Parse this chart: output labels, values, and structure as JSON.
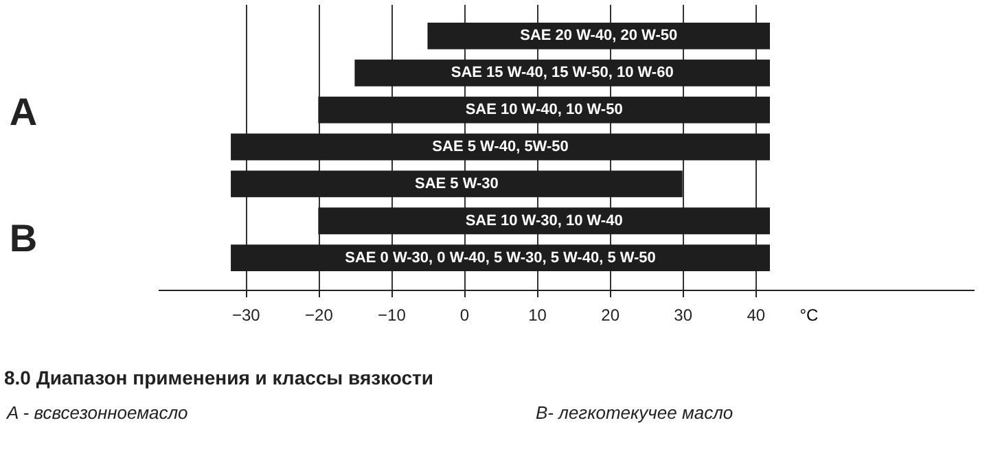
{
  "chart_data": {
    "type": "bar",
    "orientation": "horizontal",
    "title": "8.0 Диапазон применения и классы вязкости",
    "xlabel": "°C",
    "categories": [
      "SAE 20 W-40, 20 W-50",
      "SAE 15 W-40, 15 W-50, 10 W-60",
      "SAE 10 W-40, 10 W-50",
      "SAE 5 W-40, 5W-50",
      "SAE 5 W-30",
      "SAE 10 W-30, 10 W-40",
      "SAE 0 W-30, 0 W-40, 5 W-30, 5 W-40, 5 W-50"
    ],
    "base": [
      -5,
      -15,
      -20,
      -32,
      -32,
      -20,
      -32
    ],
    "values": [
      47,
      57,
      62,
      74,
      62,
      62,
      74
    ],
    "color": "#1e1e1e",
    "xlim": [
      -42,
      70
    ],
    "xticks": [
      -30,
      -20,
      -10,
      0,
      10,
      20,
      30,
      40
    ],
    "grid": "x",
    "annotations": [
      "A",
      "B",
      "A -   всвсезонноемасло",
      "B-   легкотекучее масло"
    ]
  }
}
